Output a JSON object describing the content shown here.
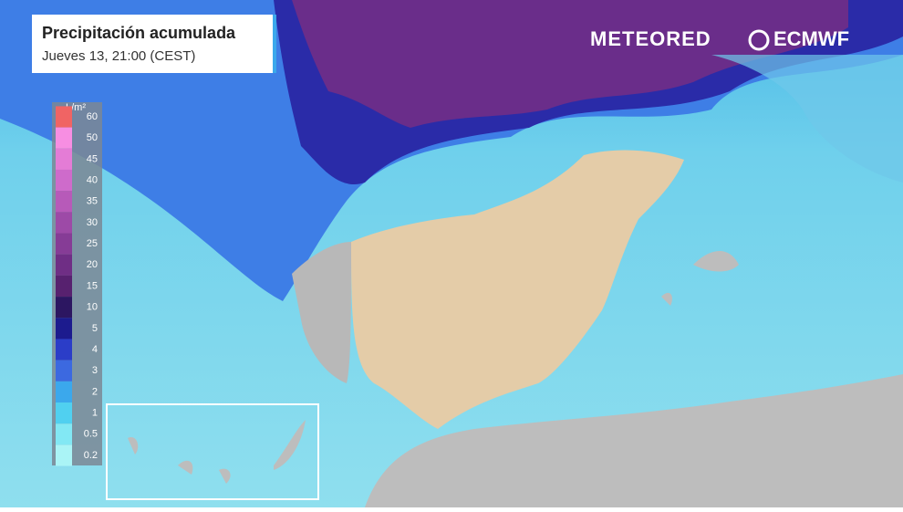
{
  "header": {
    "title": "Precipitación acumulada",
    "subtitle": "Jueves 13, 21:00 (CEST)"
  },
  "brand": {
    "left": "METEORED",
    "right": "ECMWF"
  },
  "legend": {
    "unit": "L/m²",
    "items": [
      {
        "label": "60",
        "color": "#f06464"
      },
      {
        "label": "50",
        "color": "#f78ee2"
      },
      {
        "label": "45",
        "color": "#e47cd6"
      },
      {
        "label": "40",
        "color": "#ce6bcb"
      },
      {
        "label": "35",
        "color": "#b75ab9"
      },
      {
        "label": "30",
        "color": "#9d4aa7"
      },
      {
        "label": "25",
        "color": "#863c96"
      },
      {
        "label": "20",
        "color": "#6f2e85"
      },
      {
        "label": "15",
        "color": "#57216f"
      },
      {
        "label": "10",
        "color": "#2c1661"
      },
      {
        "label": "5",
        "color": "#1c1b8e"
      },
      {
        "label": "4",
        "color": "#2b3dc8"
      },
      {
        "label": "3",
        "color": "#3c69e0"
      },
      {
        "label": "2",
        "color": "#3ba8ec"
      },
      {
        "label": "1",
        "color": "#50d0f0"
      },
      {
        "label": "0.5",
        "color": "#82e8f4"
      },
      {
        "label": "0.2",
        "color": "#aaf4f6"
      }
    ]
  }
}
